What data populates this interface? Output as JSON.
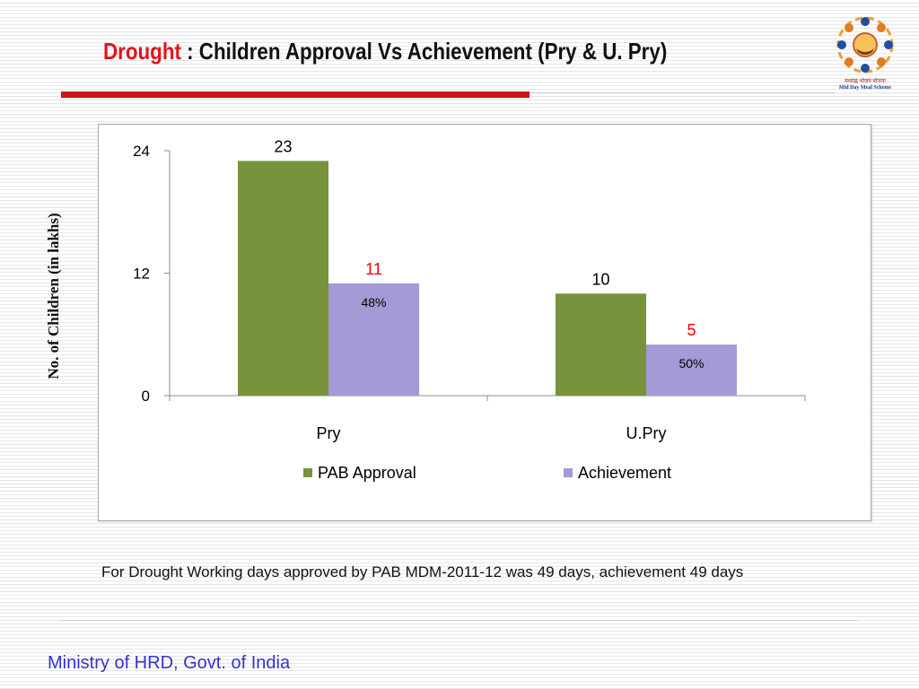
{
  "slide": {
    "title_highlight": "Drought",
    "title_rest": "  : Children Approval Vs Achievement (Pry & U. Pry)",
    "note": "For Drought Working days approved by PAB MDM-2011-12 was 49 days, achievement 49 days",
    "footer": "Ministry of HRD, Govt. of India",
    "logo": {
      "icon": "mid-day-meal-logo",
      "caption_hindi": "मध्याह्न भोजन योजना",
      "caption_english": "Mid Day Meal Scheme"
    },
    "colors": {
      "title_highlight": "#e0141b",
      "accent_rule": "#c8151c",
      "footer": "#3333cc"
    }
  },
  "chart_data": {
    "type": "bar",
    "categories": [
      "Pry",
      "U.Pry"
    ],
    "series": [
      {
        "name": "PAB Approval",
        "values": [
          23,
          10
        ],
        "color": "#77933c",
        "label_color": "#000000"
      },
      {
        "name": "Achievement",
        "values": [
          11,
          5
        ],
        "color": "#a599d6",
        "label_color": "#ff0000",
        "inner_labels": [
          "48%",
          "50%"
        ]
      }
    ],
    "ylabel": "No. of Children (in lakhs)",
    "xlabel": "",
    "ylim": [
      0,
      24
    ],
    "yticks": [
      0,
      12,
      24
    ],
    "grid": false,
    "legend": "bottom"
  }
}
